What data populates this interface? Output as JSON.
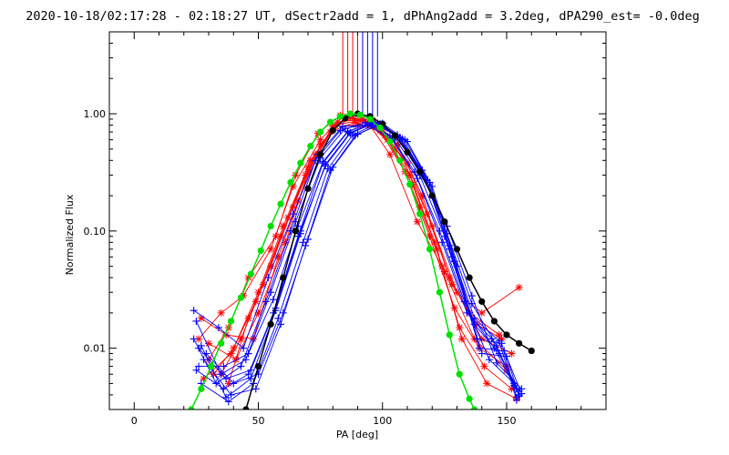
{
  "chart_data": {
    "type": "line",
    "title": "2020-10-18/02:17:28 - 02:18:27 UT, dSectr2add = 1, dPhAng2add = 3.2deg, dPA290_est= -0.0deg",
    "xlabel": "PA [deg]",
    "ylabel": "Normalized Flux",
    "xlim": [
      -10,
      190
    ],
    "ylim": [
      0.003,
      5.0
    ],
    "yscale": "log",
    "x_ticks": [
      0,
      50,
      100,
      150
    ],
    "x_tick_labels": [
      "0",
      "50",
      "100",
      "150"
    ],
    "y_ticks": [
      0.01,
      0.1,
      1.0
    ],
    "y_tick_labels": [
      "0.01",
      "0.10",
      "1.00"
    ],
    "grid": false,
    "series": [
      {
        "color": "#ff0000",
        "marker": "asterisk",
        "curves": [
          {
            "x": [
              27,
              37,
              48,
              58,
              66,
              75,
              85,
              96,
              106,
              116,
              127,
              140,
              152
            ],
            "y": [
              0.018,
              0.013,
              0.012,
              0.06,
              0.18,
              0.55,
              0.92,
              0.88,
              0.55,
              0.2,
              0.04,
              0.012,
              0.009
            ]
          },
          {
            "x": [
              26,
              35,
              44,
              55,
              64,
              75,
              84,
              95,
              105,
              115,
              125,
              137,
              150
            ],
            "y": [
              0.012,
              0.02,
              0.028,
              0.07,
              0.24,
              0.6,
              0.95,
              0.82,
              0.5,
              0.16,
              0.045,
              0.012,
              0.0065
            ]
          },
          {
            "x": [
              30,
              38,
              46,
              57,
              65,
              74,
              83,
              94,
              103,
              114,
              124,
              135,
              147
            ],
            "y": [
              0.008,
              0.015,
              0.04,
              0.09,
              0.3,
              0.68,
              0.97,
              0.85,
              0.45,
              0.12,
              0.05,
              0.02,
              0.013
            ]
          },
          {
            "x": [
              32,
              40,
              50,
              60,
              70,
              80,
              90,
              100,
              110,
              120,
              130,
              140,
              155
            ],
            "y": [
              0.006,
              0.01,
              0.03,
              0.11,
              0.35,
              0.78,
              0.8,
              0.7,
              0.38,
              0.11,
              0.03,
              0.02,
              0.033
            ]
          },
          {
            "x": [
              28,
              39,
              49,
              59,
              69,
              79,
              89,
              99,
              109,
              119,
              129,
              139,
              150
            ],
            "y": [
              0.0055,
              0.009,
              0.025,
              0.09,
              0.3,
              0.7,
              0.85,
              0.72,
              0.32,
              0.09,
              0.022,
              0.01,
              0.007
            ]
          },
          {
            "x": [
              35,
              43,
              52,
              62,
              71,
              81,
              91,
              101,
              111,
              121,
              131,
              141,
              152
            ],
            "y": [
              0.006,
              0.012,
              0.035,
              0.13,
              0.4,
              0.8,
              0.88,
              0.65,
              0.3,
              0.08,
              0.015,
              0.007,
              0.0045
            ]
          },
          {
            "x": [
              38,
              46,
              55,
              64,
              73,
              82,
              92,
              102,
              112,
              122,
              132,
              142,
              154
            ],
            "y": [
              0.005,
              0.018,
              0.05,
              0.16,
              0.45,
              0.85,
              0.9,
              0.6,
              0.25,
              0.07,
              0.012,
              0.005,
              0.0037
            ]
          },
          {
            "x": [
              30,
              41,
              50,
              61,
              70,
              80,
              88,
              98,
              108,
              118,
              128,
              138,
              148
            ],
            "y": [
              0.011,
              0.008,
              0.02,
              0.08,
              0.32,
              0.75,
              0.93,
              0.78,
              0.42,
              0.14,
              0.035,
              0.016,
              0.012
            ]
          }
        ],
        "spikes_x": [
          84,
          86,
          88,
          90
        ]
      },
      {
        "color": "#0000ff",
        "marker": "plus",
        "curves": [
          {
            "x": [
              24,
              34,
              44,
              54,
              64,
              74,
              84,
              94,
              104,
              114,
              124,
              134,
              144,
              154
            ],
            "y": [
              0.021,
              0.015,
              0.01,
              0.04,
              0.14,
              0.45,
              0.78,
              0.8,
              0.6,
              0.28,
              0.08,
              0.02,
              0.012,
              0.0045
            ]
          },
          {
            "x": [
              25,
              35,
              45,
              55,
              65,
              75,
              85,
              95,
              105,
              115,
              125,
              135,
              145,
              155
            ],
            "y": [
              0.017,
              0.006,
              0.008,
              0.03,
              0.12,
              0.42,
              0.75,
              0.82,
              0.62,
              0.3,
              0.09,
              0.02,
              0.01,
              0.004
            ]
          },
          {
            "x": [
              24,
              33,
              43,
              53,
              63,
              73,
              83,
              93,
              103,
              113,
              123,
              133,
              143,
              153
            ],
            "y": [
              0.012,
              0.005,
              0.007,
              0.025,
              0.1,
              0.4,
              0.72,
              0.84,
              0.65,
              0.32,
              0.1,
              0.025,
              0.008,
              0.005
            ]
          },
          {
            "x": [
              25,
              36,
              46,
              56,
              66,
              76,
              86,
              96,
              106,
              116,
              126,
              136,
              146,
              156
            ],
            "y": [
              0.0065,
              0.0045,
              0.006,
              0.02,
              0.09,
              0.38,
              0.7,
              0.85,
              0.66,
              0.33,
              0.11,
              0.028,
              0.0075,
              0.0045
            ]
          },
          {
            "x": [
              26,
              37,
              47,
              57,
              67,
              77,
              87,
              97,
              107,
              117,
              127,
              137,
              147,
              155
            ],
            "y": [
              0.01,
              0.0055,
              0.0065,
              0.022,
              0.1,
              0.36,
              0.68,
              0.84,
              0.63,
              0.29,
              0.07,
              0.016,
              0.009,
              0.0043
            ]
          },
          {
            "x": [
              27,
              38,
              48,
              58,
              68,
              78,
              88,
              98,
              108,
              118,
              128,
              138,
              148,
              154
            ],
            "y": [
              0.005,
              0.0035,
              0.005,
              0.018,
              0.08,
              0.34,
              0.66,
              0.83,
              0.61,
              0.27,
              0.06,
              0.012,
              0.011,
              0.0038
            ]
          },
          {
            "x": [
              28,
              39,
              49,
              59,
              69,
              79,
              89,
              99,
              109,
              119,
              129,
              139,
              149,
              156
            ],
            "y": [
              0.008,
              0.004,
              0.0045,
              0.016,
              0.075,
              0.33,
              0.65,
              0.82,
              0.6,
              0.26,
              0.055,
              0.01,
              0.0095,
              0.0041
            ]
          },
          {
            "x": [
              29,
              40,
              50,
              60,
              70,
              80,
              90,
              100,
              110,
              120,
              130,
              140,
              150,
              155
            ],
            "y": [
              0.009,
              0.005,
              0.006,
              0.02,
              0.085,
              0.35,
              0.67,
              0.83,
              0.58,
              0.24,
              0.05,
              0.009,
              0.0085,
              0.0039
            ]
          },
          {
            "x": [
              26,
              36,
              46,
              56,
              66,
              76,
              86,
              96,
              106,
              116,
              126,
              136,
              146,
              153
            ],
            "y": [
              0.007,
              0.007,
              0.009,
              0.026,
              0.11,
              0.39,
              0.71,
              0.84,
              0.64,
              0.31,
              0.095,
              0.024,
              0.0105,
              0.0048
            ]
          },
          {
            "x": [
              27,
              37,
              47,
              57,
              67,
              77,
              87,
              97,
              107,
              117,
              127,
              137,
              147,
              154
            ],
            "y": [
              0.0105,
              0.0038,
              0.0055,
              0.021,
              0.095,
              0.37,
              0.69,
              0.85,
              0.62,
              0.28,
              0.075,
              0.018,
              0.0115,
              0.0036
            ]
          }
        ],
        "spikes_x": [
          92,
          94,
          96,
          98
        ]
      },
      {
        "color": "#000000",
        "marker": "dot",
        "curves": [
          {
            "x": [
              45,
              50,
              55,
              60,
              65,
              70,
              75,
              80,
              85,
              90,
              95,
              100,
              105,
              110,
              115,
              120,
              125,
              130,
              135,
              140,
              145,
              150,
              155,
              160
            ],
            "y": [
              0.003,
              0.007,
              0.016,
              0.04,
              0.1,
              0.23,
              0.45,
              0.72,
              0.92,
              1.0,
              0.95,
              0.82,
              0.65,
              0.47,
              0.32,
              0.2,
              0.12,
              0.07,
              0.04,
              0.025,
              0.017,
              0.013,
              0.011,
              0.0095
            ]
          }
        ]
      },
      {
        "color": "#00e000",
        "marker": "dot",
        "curves": [
          {
            "x": [
              23,
              27,
              31,
              35,
              39,
              43,
              47,
              51,
              55,
              59,
              63,
              67,
              71,
              75,
              79,
              83,
              87,
              91,
              95,
              99,
              103,
              107,
              111,
              115,
              119,
              123,
              127,
              131,
              135,
              137
            ],
            "y": [
              0.003,
              0.0045,
              0.007,
              0.011,
              0.017,
              0.027,
              0.043,
              0.068,
              0.11,
              0.17,
              0.26,
              0.38,
              0.53,
              0.7,
              0.85,
              0.95,
              1.0,
              0.98,
              0.9,
              0.76,
              0.58,
              0.4,
              0.25,
              0.14,
              0.07,
              0.03,
              0.013,
              0.006,
              0.0037,
              0.003
            ]
          }
        ]
      }
    ]
  }
}
